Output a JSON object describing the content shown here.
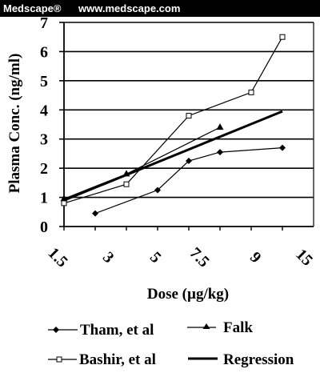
{
  "banner": {
    "brand": "Medscape®",
    "site": "www.medscape.com"
  },
  "chart_data": {
    "type": "line",
    "xlabel": "Dose (µg/kg)",
    "ylabel": "Plasma Conc. (ng/ml)",
    "categories": [
      "1.5",
      "3",
      "5",
      "7.5",
      "9",
      "15"
    ],
    "ylim": [
      0,
      7
    ],
    "yticks": [
      0,
      1,
      2,
      3,
      4,
      5,
      6,
      7
    ],
    "grid": true,
    "legend_position": "bottom",
    "series": [
      {
        "name": "Tham, et al",
        "marker": "diamond",
        "x": [
          2,
          4,
          5,
          6,
          8
        ],
        "y": [
          0.45,
          1.25,
          2.25,
          2.55,
          2.7
        ]
      },
      {
        "name": "Falk",
        "marker": "triangle",
        "x": [
          1,
          3,
          6
        ],
        "y": [
          0.95,
          1.8,
          3.4
        ]
      },
      {
        "name": "Bashir, et al",
        "marker": "square",
        "x": [
          1,
          3,
          5,
          7,
          8
        ],
        "y": [
          0.8,
          1.45,
          3.8,
          4.6,
          6.5
        ]
      },
      {
        "name": "Regression",
        "marker": "none",
        "x": [
          1,
          8
        ],
        "y": [
          0.9,
          3.95
        ]
      }
    ],
    "colors": {
      "line": "#000000",
      "grid": "#000000",
      "background": "#ffffff"
    }
  }
}
